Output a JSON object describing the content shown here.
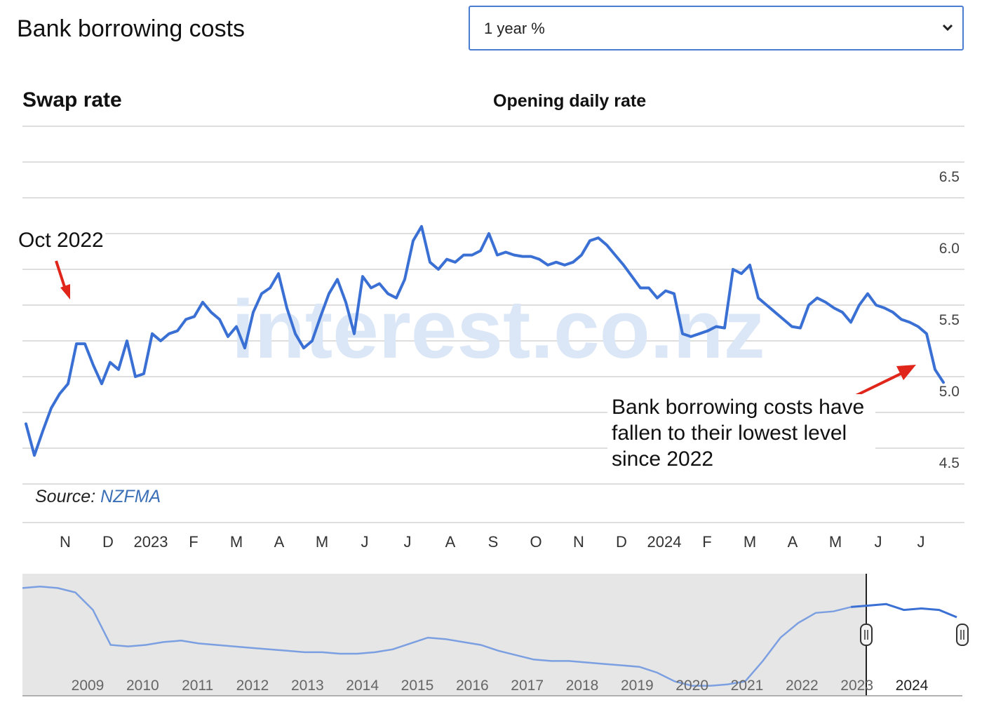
{
  "header": {
    "title": "Bank borrowing costs",
    "select_value": "1 year %"
  },
  "chart_data": {
    "type": "line",
    "title": "Swap rate",
    "subtitle": "Opening daily rate",
    "source_prefix": "Source: ",
    "source_name": "NZFMA",
    "watermark": "interest.co.nz",
    "ylim": [
      4.25,
      6.75
    ],
    "y_ticks": [
      "6.5",
      "6.0",
      "5.5",
      "5.0",
      "4.5"
    ],
    "x_ticks": [
      "N",
      "D",
      "2023",
      "F",
      "M",
      "A",
      "M",
      "J",
      "J",
      "A",
      "S",
      "O",
      "N",
      "D",
      "2024",
      "F",
      "M",
      "A",
      "M",
      "J",
      "J"
    ],
    "line_color": "#3a6fd4",
    "series": [
      {
        "values": [
          4.67,
          4.45,
          4.62,
          4.78,
          4.88,
          4.95,
          5.23,
          5.23,
          5.08,
          4.95,
          5.1,
          5.05,
          5.25,
          5.0,
          5.02,
          5.3,
          5.25,
          5.3,
          5.32,
          5.4,
          5.42,
          5.52,
          5.45,
          5.4,
          5.28,
          5.35,
          5.2,
          5.45,
          5.58,
          5.62,
          5.72,
          5.48,
          5.3,
          5.2,
          5.25,
          5.42,
          5.58,
          5.68,
          5.52,
          5.3,
          5.7,
          5.62,
          5.65,
          5.58,
          5.55,
          5.68,
          5.95,
          6.05,
          5.8,
          5.75,
          5.82,
          5.8,
          5.85,
          5.85,
          5.88,
          6.0,
          5.85,
          5.87,
          5.85,
          5.84,
          5.84,
          5.82,
          5.78,
          5.8,
          5.78,
          5.8,
          5.85,
          5.95,
          5.97,
          5.92,
          5.85,
          5.78,
          5.7,
          5.62,
          5.62,
          5.55,
          5.6,
          5.58,
          5.3,
          5.28,
          5.3,
          5.32,
          5.35,
          5.34,
          5.75,
          5.72,
          5.78,
          5.55,
          5.5,
          5.45,
          5.4,
          5.35,
          5.34,
          5.5,
          5.55,
          5.52,
          5.48,
          5.45,
          5.38,
          5.5,
          5.58,
          5.5,
          5.48,
          5.45,
          5.4,
          5.38,
          5.35,
          5.3,
          5.05,
          4.96
        ]
      }
    ],
    "navigator": {
      "x_ticks": [
        "2009",
        "2010",
        "2011",
        "2012",
        "2013",
        "2014",
        "2015",
        "2016",
        "2017",
        "2018",
        "2019",
        "2020",
        "2021",
        "2022",
        "2023",
        "2024"
      ],
      "values": [
        7.0,
        7.1,
        7.0,
        6.7,
        5.5,
        3.1,
        3.0,
        3.1,
        3.3,
        3.4,
        3.2,
        3.1,
        3.0,
        2.9,
        2.8,
        2.7,
        2.6,
        2.6,
        2.5,
        2.5,
        2.6,
        2.8,
        3.2,
        3.6,
        3.5,
        3.3,
        3.1,
        2.7,
        2.4,
        2.1,
        2.0,
        2.0,
        1.9,
        1.8,
        1.7,
        1.6,
        1.2,
        0.6,
        0.3,
        0.3,
        0.4,
        0.6,
        2.0,
        3.6,
        4.6,
        5.3,
        5.4,
        5.7,
        5.8,
        5.9,
        5.5,
        5.6,
        5.5,
        5.0
      ],
      "selected_range": [
        "2023",
        "2024"
      ]
    }
  },
  "annotations": {
    "oct": "Oct 2022",
    "note": "Bank borrowing costs have fallen to their lowest level since 2022"
  },
  "colors": {
    "line": "#3a6fd4",
    "arrow": "#e0261b",
    "grid": "#d4d4d4",
    "navigator_bg": "#e6e6e6"
  }
}
